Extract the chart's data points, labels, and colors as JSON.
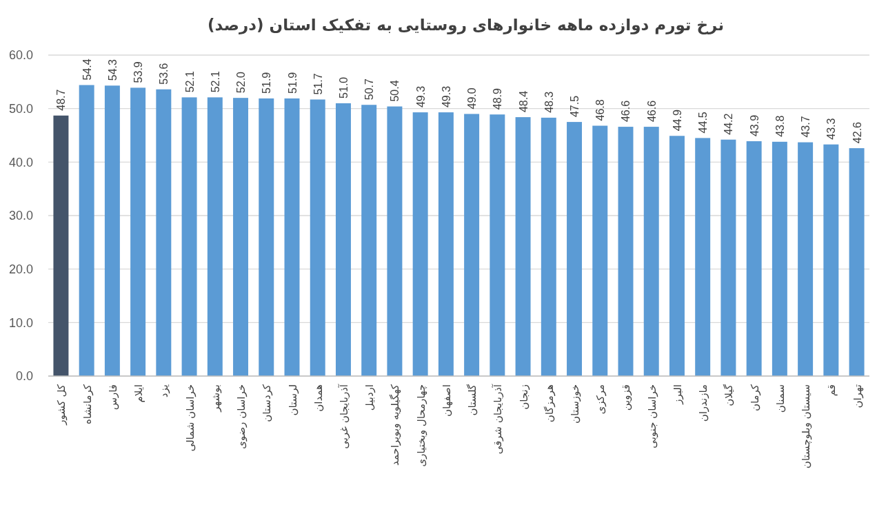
{
  "chart_data": {
    "type": "bar",
    "title": "نرخ تورم دوازده ماهه خانوارهای روستایی به تفکیک استان (درصد)",
    "categories": [
      "کل کشور",
      "کرمانشاه",
      "فارس",
      "ایلام",
      "یزد",
      "خراسان شمالی",
      "بوشهر",
      "خراسان رضوی",
      "کردستان",
      "لرستان",
      "همدان",
      "آذربایجان غربی",
      "اردبیل",
      "کهگیلویه وبویراحمد",
      "چهارمحال وبختیاری",
      "اصفهان",
      "گلستان",
      "آذربایجان شرقی",
      "زنجان",
      "هرمزگان",
      "خوزستان",
      "مرکزی",
      "قزوین",
      "خراسان جنوبی",
      "البرز",
      "مازندران",
      "گیلان",
      "کرمان",
      "سمنان",
      "سیستان وبلوچستان",
      "قم",
      "تهران"
    ],
    "values": [
      48.7,
      54.4,
      54.3,
      53.9,
      53.6,
      52.1,
      52.1,
      52.0,
      51.9,
      51.9,
      51.7,
      51.0,
      50.7,
      50.4,
      49.3,
      49.3,
      49.0,
      48.9,
      48.4,
      48.3,
      47.5,
      46.8,
      46.6,
      46.6,
      44.9,
      44.5,
      44.2,
      43.9,
      43.8,
      43.7,
      43.3,
      42.6
    ],
    "value_labels": [
      "48.7",
      "54.4",
      "54.3",
      "53.9",
      "53.6",
      "52.1",
      "52.1",
      "52.0",
      "51.9",
      "51.9",
      "51.7",
      "51.0",
      "50.7",
      "50.4",
      "49.3",
      "49.3",
      "49.0",
      "48.9",
      "48.4",
      "48.3",
      "47.5",
      "46.8",
      "46.6",
      "46.6",
      "44.9",
      "44.5",
      "44.2",
      "43.9",
      "43.8",
      "43.7",
      "43.3",
      "42.6"
    ],
    "colors": [
      "#44546a",
      "#5b9bd5",
      "#5b9bd5",
      "#5b9bd5",
      "#5b9bd5",
      "#5b9bd5",
      "#5b9bd5",
      "#5b9bd5",
      "#5b9bd5",
      "#5b9bd5",
      "#5b9bd5",
      "#5b9bd5",
      "#5b9bd5",
      "#5b9bd5",
      "#5b9bd5",
      "#5b9bd5",
      "#5b9bd5",
      "#5b9bd5",
      "#5b9bd5",
      "#5b9bd5",
      "#5b9bd5",
      "#5b9bd5",
      "#5b9bd5",
      "#5b9bd5",
      "#5b9bd5",
      "#5b9bd5",
      "#5b9bd5",
      "#5b9bd5",
      "#5b9bd5",
      "#5b9bd5",
      "#5b9bd5",
      "#5b9bd5"
    ],
    "ylim": [
      0,
      60
    ],
    "yticks": [
      {
        "value": 0,
        "label": "0.0"
      },
      {
        "value": 10,
        "label": "10.0"
      },
      {
        "value": 20,
        "label": "20.0"
      },
      {
        "value": 30,
        "label": "30.0"
      },
      {
        "value": 40,
        "label": "40.0"
      },
      {
        "value": 50,
        "label": "50.0"
      },
      {
        "value": 60,
        "label": "60.0"
      }
    ],
    "grid": "y"
  }
}
